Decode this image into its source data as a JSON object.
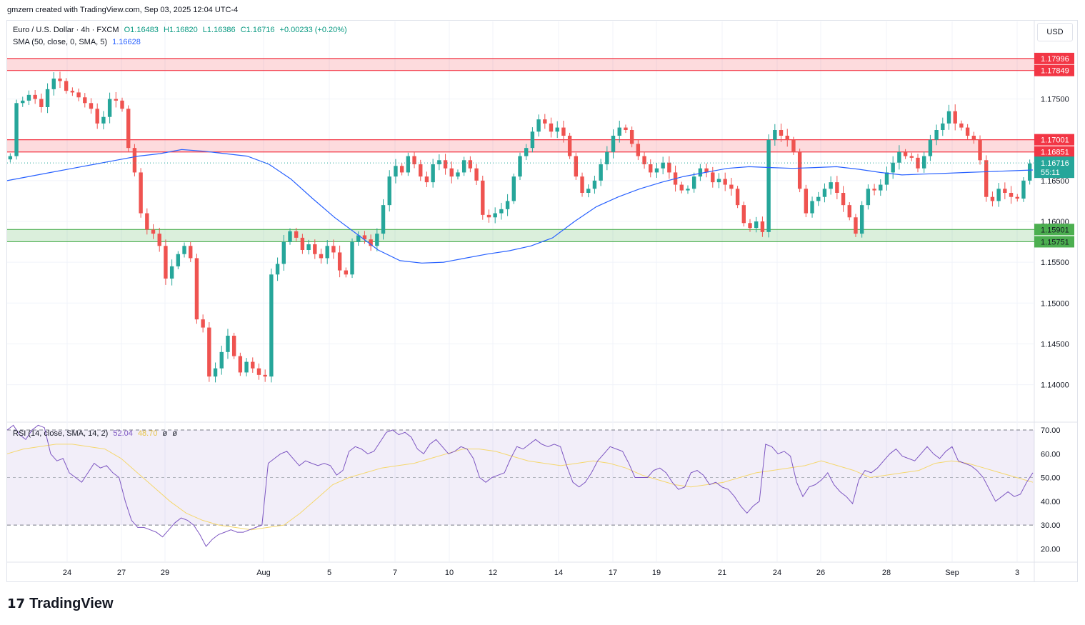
{
  "credit": "gmzern created with TradingView.com, Sep 03, 2025 12:04 UTC-4",
  "currency_button": "USD",
  "legend": {
    "symbol": "Euro / U.S. Dollar · 4h · FXCM",
    "open": "O1.16483",
    "high": "H1.16820",
    "low": "L1.16386",
    "close": "C1.16716",
    "change": "+0.00233 (+0.20%)",
    "sma_label": "SMA (50, close, 0, SMA, 5)",
    "sma_value": "1.16628",
    "rsi_label": "RSI (14, close, SMA, 14, 2)",
    "rsi_value": "52.04",
    "rsi_ma_value": "48.70",
    "rsi_extra1": "ø",
    "rsi_extra2": "ø"
  },
  "footer_logo": {
    "mark": "17",
    "text": "TradingView"
  },
  "colors": {
    "up": "#26a69a",
    "down": "#ef5350",
    "sma": "#2962ff",
    "rsi": "#7e57c2",
    "rsi_ma": "#f5d76e",
    "resistance_zone": "#f23645",
    "support_zone": "#4caf50"
  },
  "chart_data": [
    {
      "type": "candlestick",
      "title": "Euro / U.S. Dollar · 4h · FXCM",
      "ylim": [
        1.1355,
        1.1845
      ],
      "price_ticks": [
        "1.17500",
        "1.16500",
        "1.16000",
        "1.15500",
        "1.15000",
        "1.14500",
        "1.14000"
      ],
      "x_labels": [
        "24",
        "27",
        "29",
        "Aug",
        "5",
        "7",
        "10",
        "12",
        "14",
        "17",
        "19",
        "21",
        "24",
        "26",
        "28",
        "Sep",
        "3"
      ],
      "zones": [
        {
          "kind": "resistance",
          "top": 1.17996,
          "bottom": 1.17849,
          "labels": [
            "1.17996",
            "1.17849"
          ]
        },
        {
          "kind": "resistance",
          "top": 1.17001,
          "bottom": 1.16851,
          "labels": [
            "1.17001",
            "1.16851"
          ]
        },
        {
          "kind": "support",
          "top": 1.15901,
          "bottom": 1.15751,
          "labels": [
            "1.15901",
            "1.15751"
          ]
        }
      ],
      "last_price": {
        "value": 1.16716,
        "label": "1.16716",
        "countdown": "55:11"
      },
      "sma_last": 1.16628,
      "price_path": [
        1.168,
        1.1745,
        1.1748,
        1.1755,
        1.175,
        1.174,
        1.1762,
        1.1775,
        1.1772,
        1.176,
        1.1758,
        1.1752,
        1.1745,
        1.1738,
        1.172,
        1.1728,
        1.175,
        1.1748,
        1.1738,
        1.169,
        1.166,
        1.161,
        1.159,
        1.1585,
        1.157,
        1.153,
        1.1545,
        1.156,
        1.157,
        1.1555,
        1.148,
        1.147,
        1.141,
        1.142,
        1.144,
        1.146,
        1.1435,
        1.1415,
        1.1428,
        1.142,
        1.1412,
        1.141,
        1.1535,
        1.1548,
        1.1575,
        1.1588,
        1.158,
        1.1565,
        1.1572,
        1.156,
        1.1555,
        1.157,
        1.1562,
        1.154,
        1.1535,
        1.1575,
        1.1583,
        1.1578,
        1.157,
        1.1585,
        1.162,
        1.1655,
        1.1668,
        1.166,
        1.168,
        1.167,
        1.1655,
        1.1648,
        1.167,
        1.1675,
        1.1665,
        1.1655,
        1.166,
        1.1675,
        1.1665,
        1.165,
        1.1608,
        1.1605,
        1.161,
        1.1615,
        1.1625,
        1.1655,
        1.168,
        1.169,
        1.171,
        1.1725,
        1.172,
        1.171,
        1.1715,
        1.1705,
        1.168,
        1.1655,
        1.1635,
        1.164,
        1.165,
        1.167,
        1.1685,
        1.1705,
        1.1715,
        1.1712,
        1.1695,
        1.168,
        1.167,
        1.166,
        1.1665,
        1.1672,
        1.166,
        1.1645,
        1.1638,
        1.164,
        1.1655,
        1.1665,
        1.166,
        1.1648,
        1.1652,
        1.1645,
        1.164,
        1.162,
        1.1598,
        1.1592,
        1.16,
        1.1587,
        1.17,
        1.1712,
        1.1705,
        1.17,
        1.1685,
        1.164,
        1.161,
        1.1625,
        1.163,
        1.164,
        1.1648,
        1.1635,
        1.162,
        1.1605,
        1.1585,
        1.162,
        1.164,
        1.1638,
        1.1645,
        1.166,
        1.1672,
        1.1685,
        1.168,
        1.1678,
        1.1665,
        1.168,
        1.17,
        1.1712,
        1.172,
        1.1735,
        1.172,
        1.1715,
        1.1705,
        1.17,
        1.1675,
        1.163,
        1.1625,
        1.164,
        1.1635,
        1.163,
        1.1628,
        1.165,
        1.1671
      ],
      "sma_path": [
        1.165,
        1.1655,
        1.166,
        1.1665,
        1.167,
        1.1675,
        1.168,
        1.1683,
        1.1688,
        1.1686,
        1.1683,
        1.168,
        1.167,
        1.1652,
        1.1628,
        1.1605,
        1.1585,
        1.1565,
        1.1552,
        1.1549,
        1.155,
        1.1555,
        1.156,
        1.1564,
        1.157,
        1.158,
        1.16,
        1.1618,
        1.163,
        1.164,
        1.1648,
        1.1655,
        1.166,
        1.1665,
        1.1667,
        1.1666,
        1.1665,
        1.1666,
        1.1667,
        1.1664,
        1.166,
        1.1657,
        1.1658,
        1.1659,
        1.166,
        1.1661,
        1.1662,
        1.1663
      ],
      "sma_x_start": 0
    },
    {
      "type": "line",
      "title": "RSI (14, close, SMA, 14, 2)",
      "ylim": [
        15,
        73
      ],
      "y_ticks": [
        "70.00",
        "60.00",
        "50.00",
        "40.00",
        "30.00",
        "20.00"
      ],
      "band": [
        30,
        70
      ],
      "series": [
        {
          "name": "RSI",
          "values": [
            70,
            72,
            68,
            66,
            70,
            72,
            71,
            60,
            57,
            58,
            52,
            50,
            48,
            52,
            56,
            54,
            55,
            52,
            50,
            40,
            32,
            29,
            29,
            28,
            27,
            25,
            28,
            31,
            33,
            32,
            30,
            26,
            21,
            24,
            26,
            27,
            28,
            27,
            27,
            28,
            29,
            30,
            56,
            58,
            60,
            61,
            58,
            55,
            57,
            56,
            55,
            56,
            55,
            51,
            53,
            61,
            63,
            62,
            60,
            61,
            65,
            69,
            70,
            68,
            69,
            67,
            62,
            60,
            64,
            66,
            63,
            60,
            61,
            63,
            62,
            58,
            50,
            48,
            50,
            51,
            52,
            58,
            63,
            62,
            64,
            66,
            64,
            63,
            64,
            63,
            55,
            48,
            46,
            48,
            52,
            57,
            60,
            63,
            62,
            61,
            56,
            50,
            50,
            50,
            53,
            54,
            52,
            48,
            45,
            46,
            52,
            53,
            51,
            47,
            48,
            46,
            45,
            42,
            38,
            35,
            38,
            40,
            64,
            63,
            60,
            61,
            59,
            48,
            42,
            46,
            47,
            49,
            52,
            47,
            44,
            42,
            39,
            49,
            53,
            52,
            54,
            57,
            60,
            62,
            59,
            58,
            57,
            60,
            63,
            60,
            58,
            61,
            63,
            57,
            56,
            55,
            53,
            50,
            45,
            40,
            42,
            44,
            42,
            43,
            48,
            52
          ]
        },
        {
          "name": "RSI-based MA",
          "values": [
            60,
            62,
            63,
            64,
            64,
            63,
            62,
            58,
            52,
            46,
            40,
            35,
            32,
            30,
            29,
            28,
            29,
            30,
            35,
            41,
            47,
            50,
            52,
            54,
            55,
            56,
            58,
            60,
            62,
            62,
            61,
            59,
            57,
            56,
            55,
            56,
            57,
            56,
            54,
            51,
            49,
            47,
            46,
            47,
            48,
            50,
            52,
            53,
            54,
            55,
            57,
            55,
            53,
            50,
            51,
            52,
            53,
            56,
            57,
            56,
            54,
            52,
            50,
            48
          ]
        }
      ]
    }
  ]
}
